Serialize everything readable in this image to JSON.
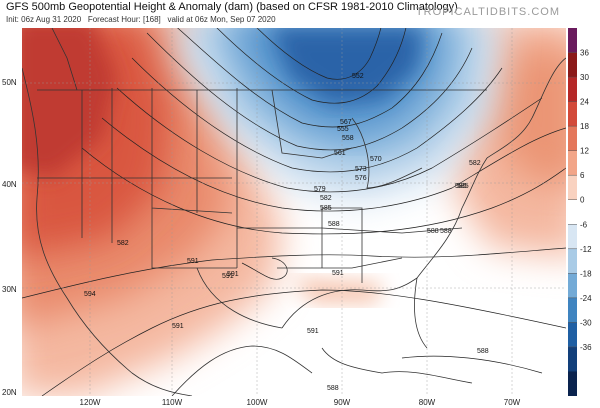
{
  "header": {
    "title": "GFS 500mb Geopotential Height & Anomaly (dam) (based on CFSR 1981-2010 Climatology)",
    "init": "Init: 06z Aug 31 2020",
    "forecast": "Forecast Hour: [168]",
    "valid": "valid at 06z Mon, Sep 07 2020",
    "brand": "TROPICALTIDBITS.COM"
  },
  "map": {
    "lat_labels": [
      "50N",
      "40N",
      "30N",
      "20N"
    ],
    "lon_labels": [
      "120W",
      "110W",
      "100W",
      "90W",
      "80W",
      "70W"
    ],
    "contour_labels": [
      "582",
      "591",
      "591",
      "594",
      "591",
      "588",
      "591",
      "588",
      "588",
      "567",
      "570",
      "561",
      "573",
      "576",
      "579",
      "582",
      "585",
      "588",
      "588",
      "582",
      "585",
      "591",
      "591",
      "585",
      "552",
      "555",
      "558"
    ]
  },
  "colorbar": {
    "ticks": [
      "36",
      "30",
      "24",
      "18",
      "12",
      "6",
      "0",
      "-6",
      "-12",
      "-18",
      "-24",
      "-30",
      "-36"
    ],
    "colors": [
      "#6a1b5d",
      "#8b1a1a",
      "#b52828",
      "#d24a3a",
      "#e4775b",
      "#f2a588",
      "#f9d2c0",
      "#ffffff",
      "#d8e6f3",
      "#a9cbe6",
      "#73aad6",
      "#3f84c0",
      "#1f5fa3",
      "#123f7a",
      "#0a234e"
    ]
  }
}
